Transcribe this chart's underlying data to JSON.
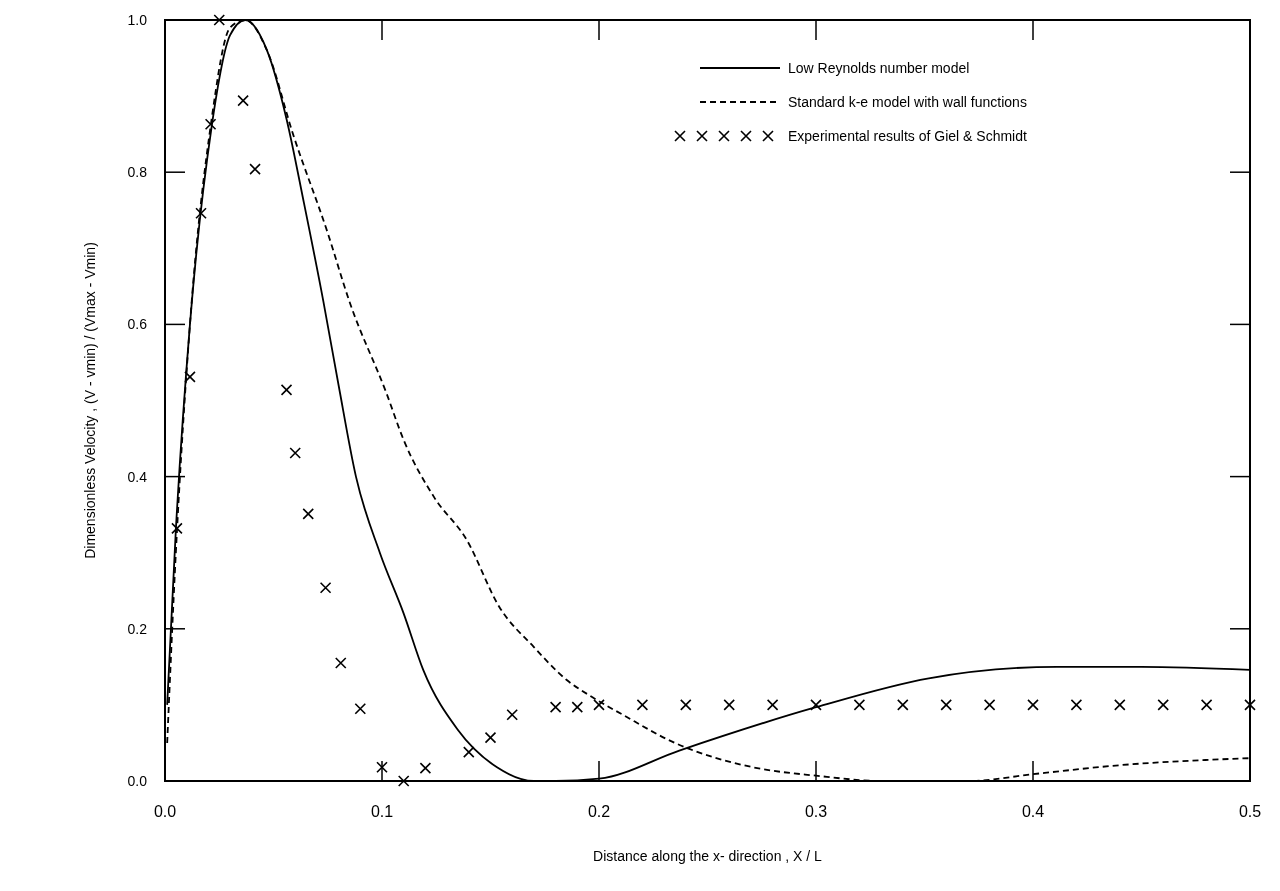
{
  "chart_data": {
    "type": "line",
    "xlabel": "Distance along the x- direction  ,  X / L",
    "ylabel": "Dimensionless Velocity , (V - vmin) / (Vmax - Vmin)",
    "xlim": [
      0,
      0.5
    ],
    "ylim": [
      0,
      1
    ],
    "xticks": [
      {
        "value": 0,
        "label": "0.0"
      },
      0.1,
      0.2,
      0.3,
      0.4,
      0.5
    ],
    "yticks": [
      {
        "value": 0,
        "label": "0.0"
      },
      0.2,
      0.4,
      0.6,
      0.8,
      {
        "value": 1,
        "label": "1.0"
      }
    ],
    "grid": false,
    "legend": "top right",
    "series": [
      {
        "name": "Low Reynolds number model",
        "color": "#000000",
        "line_style": "solid",
        "marker": "none",
        "x": [
          0.001,
          0.005,
          0.0115,
          0.0215,
          0.03,
          0.037,
          0.047,
          0.056,
          0.064,
          0.073,
          0.08,
          0.088,
          0.099,
          0.11,
          0.119,
          0.135,
          0.153,
          0.17,
          0.18,
          0.2,
          0.237,
          0.3,
          0.352,
          0.411,
          0.45,
          0.5
        ],
        "values": [
          0.1,
          0.33,
          0.6,
          0.86,
          0.98,
          1.0,
          0.96,
          0.87,
          0.76,
          0.63,
          0.52,
          0.4,
          0.3,
          0.22,
          0.146,
          0.067,
          0.018,
          0.0,
          0.0,
          0.003,
          0.04,
          0.097,
          0.135,
          0.15,
          0.15,
          0.146
        ]
      },
      {
        "name": "Standard k-e model with wall functions",
        "color": "#000000",
        "line_style": "dashed",
        "marker": "none",
        "x": [
          0.001,
          0.005,
          0.0115,
          0.0215,
          0.03,
          0.037,
          0.047,
          0.059,
          0.075,
          0.085,
          0.102,
          0.11,
          0.124,
          0.139,
          0.154,
          0.17,
          0.185,
          0.197,
          0.211,
          0.235,
          0.271,
          0.3,
          0.331,
          0.371,
          0.4,
          0.441,
          0.5
        ],
        "values": [
          0.05,
          0.3,
          0.6,
          0.87,
          0.99,
          1.0,
          0.96,
          0.85,
          0.72,
          0.63,
          0.51,
          0.448,
          0.373,
          0.317,
          0.229,
          0.176,
          0.133,
          0.11,
          0.087,
          0.05,
          0.018,
          0.007,
          0.0,
          0.0,
          0.009,
          0.021,
          0.03
        ]
      },
      {
        "name": "Experimental results of  Giel & Schmidt",
        "color": "#000000",
        "type": "scatter",
        "marker": "cross",
        "x": [
          0.0055,
          0.0115,
          0.0166,
          0.021,
          0.025,
          0.036,
          0.0415,
          0.056,
          0.06,
          0.066,
          0.074,
          0.081,
          0.09,
          0.1,
          0.11,
          0.12,
          0.14,
          0.15,
          0.16,
          0.18,
          0.19,
          0.2,
          0.22,
          0.24,
          0.26,
          0.28,
          0.3,
          0.32,
          0.34,
          0.36,
          0.38,
          0.4,
          0.42,
          0.44,
          0.46,
          0.48,
          0.5
        ],
        "values": [
          0.332,
          0.531,
          0.746,
          0.863,
          1.0,
          0.894,
          0.804,
          0.514,
          0.431,
          0.351,
          0.254,
          0.155,
          0.095,
          0.018,
          0.0,
          0.017,
          0.038,
          0.057,
          0.087,
          0.097,
          0.097,
          0.1,
          0.1,
          0.1,
          0.1,
          0.1,
          0.1,
          0.1,
          0.1,
          0.1,
          0.1,
          0.1,
          0.1,
          0.1,
          0.1,
          0.1,
          0.1
        ]
      }
    ]
  }
}
